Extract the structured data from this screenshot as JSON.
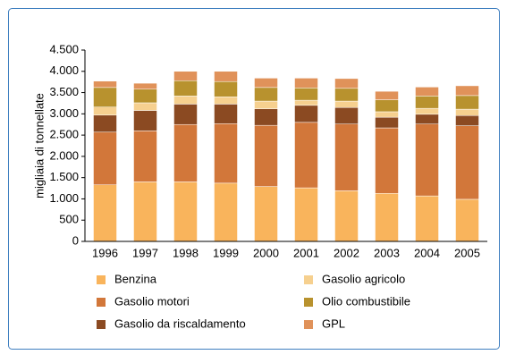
{
  "chart_data": {
    "type": "stacked_bar",
    "y_label": "migliaia di tonnellate",
    "categories": [
      "1996",
      "1997",
      "1998",
      "1999",
      "2000",
      "2001",
      "2002",
      "2003",
      "2004",
      "2005"
    ],
    "series": [
      {
        "name": "Benzina",
        "color": "#f9b45c",
        "values": [
          1330,
          1400,
          1400,
          1370,
          1290,
          1260,
          1190,
          1130,
          1070,
          990
        ]
      },
      {
        "name": "Gasolio motori",
        "color": "#d2773a",
        "values": [
          1240,
          1200,
          1350,
          1400,
          1440,
          1540,
          1570,
          1540,
          1690,
          1730
        ]
      },
      {
        "name": "Gasolio da riscaldamento",
        "color": "#8b4a22",
        "values": [
          400,
          480,
          480,
          460,
          390,
          400,
          390,
          250,
          230,
          240
        ]
      },
      {
        "name": "Gasolio agricolo",
        "color": "#f6d08f",
        "values": [
          190,
          180,
          190,
          170,
          180,
          120,
          150,
          130,
          140,
          150
        ]
      },
      {
        "name": "Olio combustibile",
        "color": "#b8922e",
        "values": [
          460,
          320,
          360,
          360,
          320,
          290,
          300,
          280,
          290,
          320
        ]
      },
      {
        "name": "GPL",
        "color": "#e0925a",
        "values": [
          150,
          140,
          220,
          240,
          220,
          230,
          230,
          200,
          210,
          230
        ]
      }
    ],
    "ylim": [
      0,
      4500
    ],
    "yticks": [
      0,
      500,
      {
        "value": 1000,
        "label": "1.000"
      },
      {
        "value": 1500,
        "label": "1.500"
      },
      {
        "value": 2000,
        "label": "2.000"
      },
      {
        "value": 2500,
        "label": "2.500"
      },
      {
        "value": 3000,
        "label": "3.000"
      },
      {
        "value": 3500,
        "label": "3.500"
      },
      {
        "value": 4000,
        "label": "4.000"
      },
      {
        "value": 4500,
        "label": "4.500"
      }
    ]
  }
}
